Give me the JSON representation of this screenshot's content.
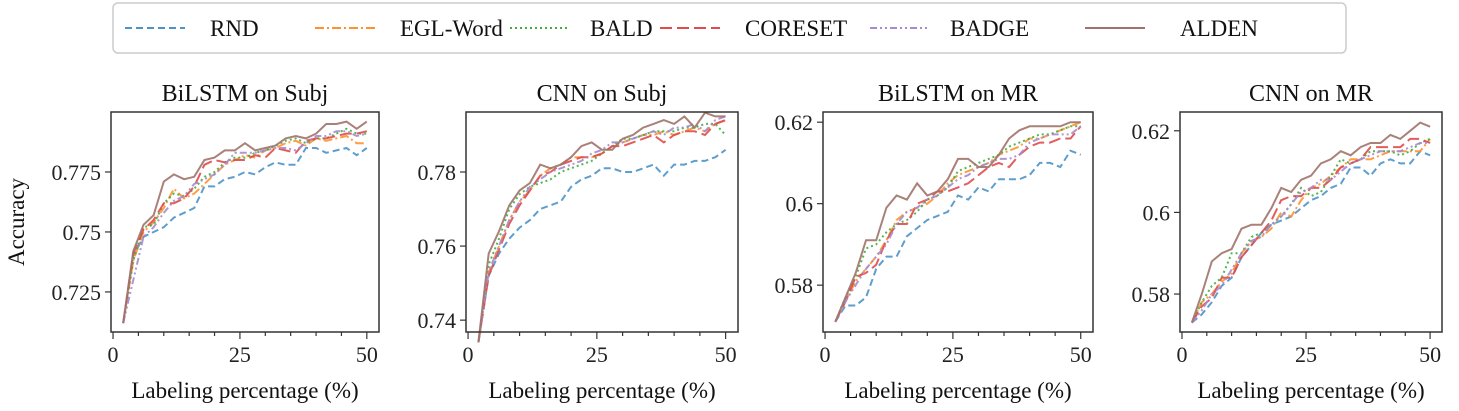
{
  "legend": {
    "items": [
      {
        "name": "RND",
        "color": "#4c93c9",
        "dash": "7,4"
      },
      {
        "name": "EGL-Word",
        "color": "#ff922e",
        "dash": "9,3,2,3"
      },
      {
        "name": "BALD",
        "color": "#3fae3f",
        "dash": "2,3"
      },
      {
        "name": "CORESET",
        "color": "#e04b4b",
        "dash": "12,5"
      },
      {
        "name": "BADGE",
        "color": "#a58bd0",
        "dash": "7,3,2,3,2,3"
      },
      {
        "name": "ALDEN",
        "color": "#a0736a",
        "dash": ""
      }
    ]
  },
  "chart_data": [
    {
      "type": "line",
      "title": "BiLSTM on Subj",
      "xlabel": "Labeling percentage (%)",
      "ylabel": "Accuracy",
      "xlim": [
        -0.4,
        52.4
      ],
      "ylim": [
        0.7083,
        0.8
      ],
      "xticks": [
        0,
        25,
        50
      ],
      "yticks": [
        0.725,
        0.75,
        0.775
      ],
      "ytick_labels": [
        "0.725",
        "0.75",
        "0.775"
      ],
      "x": [
        2,
        4,
        6,
        8,
        10,
        12,
        14,
        16,
        18,
        20,
        22,
        24,
        26,
        28,
        30,
        32,
        34,
        36,
        38,
        40,
        42,
        44,
        46,
        48,
        50
      ],
      "series": [
        {
          "name": "RND",
          "values": [
            0.712,
            0.74,
            0.748,
            0.75,
            0.752,
            0.756,
            0.758,
            0.76,
            0.769,
            0.769,
            0.772,
            0.773,
            0.775,
            0.774,
            0.777,
            0.779,
            0.778,
            0.778,
            0.785,
            0.785,
            0.783,
            0.784,
            0.785,
            0.782,
            0.785
          ]
        },
        {
          "name": "EGL-Word",
          "values": [
            0.712,
            0.738,
            0.75,
            0.754,
            0.76,
            0.768,
            0.764,
            0.766,
            0.77,
            0.774,
            0.778,
            0.78,
            0.782,
            0.781,
            0.784,
            0.785,
            0.787,
            0.788,
            0.786,
            0.789,
            0.788,
            0.789,
            0.79,
            0.787,
            0.787
          ]
        },
        {
          "name": "BALD",
          "values": [
            0.712,
            0.738,
            0.752,
            0.753,
            0.762,
            0.766,
            0.765,
            0.768,
            0.773,
            0.775,
            0.779,
            0.781,
            0.781,
            0.783,
            0.784,
            0.786,
            0.788,
            0.789,
            0.787,
            0.789,
            0.789,
            0.791,
            0.793,
            0.791,
            0.791
          ]
        },
        {
          "name": "CORESET",
          "values": [
            0.712,
            0.741,
            0.751,
            0.755,
            0.762,
            0.762,
            0.764,
            0.769,
            0.778,
            0.78,
            0.779,
            0.78,
            0.78,
            0.782,
            0.781,
            0.785,
            0.784,
            0.783,
            0.788,
            0.789,
            0.789,
            0.79,
            0.791,
            0.791,
            0.792
          ]
        },
        {
          "name": "BADGE",
          "values": [
            0.712,
            0.73,
            0.748,
            0.752,
            0.758,
            0.763,
            0.765,
            0.77,
            0.772,
            0.774,
            0.778,
            0.783,
            0.783,
            0.783,
            0.784,
            0.785,
            0.785,
            0.784,
            0.787,
            0.79,
            0.79,
            0.792,
            0.792,
            0.79,
            0.791
          ]
        },
        {
          "name": "ALDEN",
          "values": [
            0.712,
            0.742,
            0.753,
            0.757,
            0.771,
            0.774,
            0.772,
            0.773,
            0.78,
            0.781,
            0.784,
            0.784,
            0.787,
            0.784,
            0.785,
            0.786,
            0.789,
            0.79,
            0.789,
            0.791,
            0.795,
            0.795,
            0.796,
            0.793,
            0.796
          ]
        }
      ]
    },
    {
      "type": "line",
      "title": "CNN on Subj",
      "xlabel": "Labeling percentage (%)",
      "ylabel": "",
      "xlim": [
        -0.4,
        52.4
      ],
      "ylim": [
        0.7368,
        0.7962
      ],
      "xticks": [
        0,
        25,
        50
      ],
      "yticks": [
        0.74,
        0.76,
        0.78
      ],
      "ytick_labels": [
        "0.74",
        "0.76",
        "0.78"
      ],
      "x": [
        2,
        4,
        6,
        8,
        10,
        12,
        14,
        16,
        18,
        20,
        22,
        24,
        26,
        28,
        30,
        32,
        34,
        36,
        38,
        40,
        42,
        44,
        46,
        48,
        50
      ],
      "series": [
        {
          "name": "RND",
          "values": [
            0.734,
            0.752,
            0.758,
            0.762,
            0.765,
            0.767,
            0.77,
            0.771,
            0.772,
            0.776,
            0.778,
            0.779,
            0.781,
            0.781,
            0.78,
            0.78,
            0.781,
            0.782,
            0.779,
            0.782,
            0.782,
            0.783,
            0.783,
            0.784,
            0.786
          ]
        },
        {
          "name": "EGL-Word",
          "values": [
            0.734,
            0.753,
            0.76,
            0.767,
            0.772,
            0.775,
            0.779,
            0.781,
            0.782,
            0.784,
            0.784,
            0.784,
            0.785,
            0.787,
            0.788,
            0.789,
            0.79,
            0.79,
            0.791,
            0.79,
            0.791,
            0.792,
            0.791,
            0.793,
            0.794
          ]
        },
        {
          "name": "BALD",
          "values": [
            0.734,
            0.755,
            0.762,
            0.77,
            0.774,
            0.776,
            0.777,
            0.778,
            0.78,
            0.781,
            0.782,
            0.783,
            0.785,
            0.787,
            0.789,
            0.789,
            0.79,
            0.791,
            0.791,
            0.791,
            0.792,
            0.792,
            0.793,
            0.793,
            0.79
          ]
        },
        {
          "name": "CORESET",
          "values": [
            0.734,
            0.752,
            0.759,
            0.766,
            0.771,
            0.775,
            0.779,
            0.78,
            0.782,
            0.783,
            0.784,
            0.784,
            0.785,
            0.787,
            0.787,
            0.788,
            0.789,
            0.79,
            0.788,
            0.79,
            0.791,
            0.791,
            0.79,
            0.793,
            0.794
          ]
        },
        {
          "name": "BADGE",
          "values": [
            0.734,
            0.753,
            0.76,
            0.767,
            0.772,
            0.776,
            0.778,
            0.78,
            0.781,
            0.782,
            0.783,
            0.785,
            0.786,
            0.788,
            0.788,
            0.789,
            0.79,
            0.791,
            0.79,
            0.792,
            0.792,
            0.793,
            0.791,
            0.794,
            0.795
          ]
        },
        {
          "name": "ALDEN",
          "values": [
            0.734,
            0.758,
            0.764,
            0.771,
            0.775,
            0.777,
            0.782,
            0.781,
            0.782,
            0.784,
            0.787,
            0.788,
            0.786,
            0.786,
            0.789,
            0.79,
            0.792,
            0.793,
            0.794,
            0.793,
            0.795,
            0.792,
            0.796,
            0.795,
            0.795
          ]
        }
      ]
    },
    {
      "type": "line",
      "title": "BiLSTM on MR",
      "xlabel": "Labeling percentage (%)",
      "ylabel": "",
      "xlim": [
        -0.4,
        52.4
      ],
      "ylim": [
        0.5685,
        0.6225
      ],
      "xticks": [
        0,
        25,
        50
      ],
      "yticks": [
        0.58,
        0.6,
        0.62
      ],
      "ytick_labels": [
        "0.58",
        "0.6",
        "0.62"
      ],
      "x": [
        2,
        4,
        6,
        8,
        10,
        12,
        14,
        16,
        18,
        20,
        22,
        24,
        26,
        28,
        30,
        32,
        34,
        36,
        38,
        40,
        42,
        44,
        46,
        48,
        50
      ],
      "series": [
        {
          "name": "RND",
          "values": [
            0.571,
            0.575,
            0.575,
            0.577,
            0.584,
            0.587,
            0.587,
            0.592,
            0.594,
            0.596,
            0.597,
            0.598,
            0.602,
            0.601,
            0.604,
            0.603,
            0.606,
            0.606,
            0.606,
            0.607,
            0.61,
            0.61,
            0.609,
            0.613,
            0.612
          ]
        },
        {
          "name": "EGL-Word",
          "values": [
            0.571,
            0.576,
            0.581,
            0.584,
            0.587,
            0.591,
            0.596,
            0.598,
            0.599,
            0.6,
            0.602,
            0.605,
            0.607,
            0.608,
            0.609,
            0.61,
            0.612,
            0.613,
            0.614,
            0.616,
            0.616,
            0.617,
            0.618,
            0.619,
            0.62
          ]
        },
        {
          "name": "BALD",
          "values": [
            0.571,
            0.577,
            0.582,
            0.589,
            0.59,
            0.593,
            0.595,
            0.596,
            0.598,
            0.601,
            0.602,
            0.604,
            0.608,
            0.609,
            0.61,
            0.611,
            0.612,
            0.614,
            0.615,
            0.616,
            0.617,
            0.617,
            0.618,
            0.619,
            0.619
          ]
        },
        {
          "name": "CORESET",
          "values": [
            0.571,
            0.576,
            0.582,
            0.583,
            0.585,
            0.591,
            0.595,
            0.595,
            0.6,
            0.601,
            0.603,
            0.603,
            0.604,
            0.605,
            0.607,
            0.609,
            0.61,
            0.609,
            0.612,
            0.614,
            0.615,
            0.615,
            0.616,
            0.616,
            0.619
          ]
        },
        {
          "name": "BADGE",
          "values": [
            0.571,
            0.576,
            0.58,
            0.584,
            0.587,
            0.59,
            0.595,
            0.598,
            0.599,
            0.601,
            0.602,
            0.604,
            0.606,
            0.607,
            0.609,
            0.61,
            0.611,
            0.611,
            0.612,
            0.615,
            0.616,
            0.617,
            0.617,
            0.617,
            0.619
          ]
        },
        {
          "name": "ALDEN",
          "values": [
            0.571,
            0.577,
            0.583,
            0.591,
            0.591,
            0.599,
            0.602,
            0.601,
            0.605,
            0.602,
            0.603,
            0.606,
            0.611,
            0.611,
            0.609,
            0.609,
            0.612,
            0.616,
            0.618,
            0.619,
            0.619,
            0.619,
            0.619,
            0.62,
            0.62
          ]
        }
      ]
    },
    {
      "type": "line",
      "title": "CNN on MR",
      "xlabel": "Labeling percentage (%)",
      "ylabel": "",
      "xlim": [
        -0.4,
        52.4
      ],
      "ylim": [
        0.5707,
        0.6246
      ],
      "xticks": [
        0,
        25,
        50
      ],
      "yticks": [
        0.58,
        0.6,
        0.62
      ],
      "ytick_labels": [
        "0.58",
        "0.6",
        "0.62"
      ],
      "x": [
        2,
        4,
        6,
        8,
        10,
        12,
        14,
        16,
        18,
        20,
        22,
        24,
        26,
        28,
        30,
        32,
        34,
        36,
        38,
        40,
        42,
        44,
        46,
        48,
        50
      ],
      "series": [
        {
          "name": "RND",
          "values": [
            0.573,
            0.575,
            0.578,
            0.582,
            0.584,
            0.589,
            0.592,
            0.595,
            0.597,
            0.598,
            0.599,
            0.601,
            0.603,
            0.604,
            0.606,
            0.607,
            0.611,
            0.611,
            0.609,
            0.612,
            0.613,
            0.612,
            0.612,
            0.615,
            0.614
          ]
        },
        {
          "name": "EGL-Word",
          "values": [
            0.573,
            0.578,
            0.58,
            0.583,
            0.585,
            0.59,
            0.593,
            0.594,
            0.596,
            0.6,
            0.599,
            0.603,
            0.606,
            0.607,
            0.609,
            0.611,
            0.613,
            0.613,
            0.613,
            0.614,
            0.615,
            0.615,
            0.615,
            0.615,
            0.618
          ]
        },
        {
          "name": "BALD",
          "values": [
            0.573,
            0.578,
            0.582,
            0.584,
            0.59,
            0.59,
            0.594,
            0.595,
            0.597,
            0.599,
            0.602,
            0.606,
            0.604,
            0.605,
            0.609,
            0.613,
            0.612,
            0.613,
            0.615,
            0.615,
            0.615,
            0.614,
            0.615,
            0.617,
            0.618
          ]
        },
        {
          "name": "CORESET",
          "values": [
            0.573,
            0.577,
            0.579,
            0.584,
            0.584,
            0.589,
            0.592,
            0.595,
            0.598,
            0.603,
            0.604,
            0.604,
            0.606,
            0.606,
            0.608,
            0.611,
            0.612,
            0.613,
            0.616,
            0.616,
            0.616,
            0.616,
            0.618,
            0.618,
            0.617
          ]
        },
        {
          "name": "BADGE",
          "values": [
            0.573,
            0.576,
            0.58,
            0.582,
            0.586,
            0.59,
            0.593,
            0.594,
            0.597,
            0.599,
            0.602,
            0.605,
            0.606,
            0.608,
            0.608,
            0.61,
            0.612,
            0.613,
            0.614,
            0.615,
            0.615,
            0.615,
            0.616,
            0.617,
            0.617
          ]
        },
        {
          "name": "ALDEN",
          "values": [
            0.573,
            0.58,
            0.588,
            0.59,
            0.591,
            0.596,
            0.597,
            0.597,
            0.601,
            0.606,
            0.605,
            0.608,
            0.609,
            0.612,
            0.613,
            0.615,
            0.614,
            0.616,
            0.617,
            0.617,
            0.619,
            0.618,
            0.62,
            0.622,
            0.621
          ]
        }
      ]
    }
  ]
}
